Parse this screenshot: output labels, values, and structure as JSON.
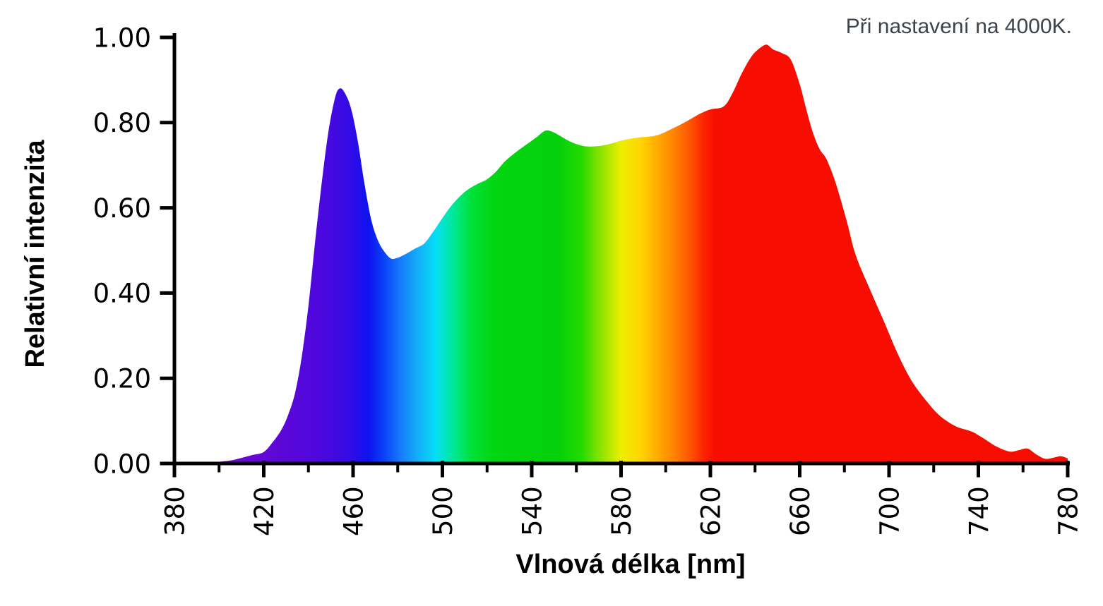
{
  "chart_data": {
    "type": "area",
    "title": "",
    "xlabel": "Vlnová délka [nm]",
    "ylabel": "Relativní intenzita",
    "annotation": "Při nastavení na 4000K.",
    "x_range": [
      380,
      780
    ],
    "y_range": [
      0,
      1
    ],
    "grid": false,
    "legend": "none",
    "x_major_ticks": [
      {
        "v": 380,
        "label": "380"
      },
      {
        "v": 420,
        "label": "420"
      },
      {
        "v": 460,
        "label": "460"
      },
      {
        "v": 500,
        "label": "500"
      },
      {
        "v": 540,
        "label": "540"
      },
      {
        "v": 580,
        "label": "580"
      },
      {
        "v": 620,
        "label": "620"
      },
      {
        "v": 660,
        "label": "660"
      },
      {
        "v": 700,
        "label": "700"
      },
      {
        "v": 740,
        "label": "740"
      },
      {
        "v": 780,
        "label": "780"
      }
    ],
    "x_minor_ticks": [
      400,
      440,
      480,
      520,
      560,
      600,
      640,
      680,
      720,
      760
    ],
    "y_ticks": [
      {
        "v": 0.0,
        "label": "0.00"
      },
      {
        "v": 0.2,
        "label": "0.20"
      },
      {
        "v": 0.4,
        "label": "0.40"
      },
      {
        "v": 0.6,
        "label": "0.60"
      },
      {
        "v": 0.8,
        "label": "0.80"
      },
      {
        "v": 1.0,
        "label": "1.00"
      }
    ],
    "axis_color": "#000000",
    "annotation_color": "#3d4349",
    "points": [
      [
        396,
        0
      ],
      [
        400,
        0.004
      ],
      [
        405,
        0.007
      ],
      [
        410,
        0.013
      ],
      [
        415,
        0.02
      ],
      [
        420,
        0.027
      ],
      [
        424,
        0.05
      ],
      [
        428,
        0.08
      ],
      [
        431,
        0.115
      ],
      [
        434,
        0.165
      ],
      [
        437,
        0.25
      ],
      [
        440,
        0.37
      ],
      [
        443,
        0.52
      ],
      [
        446,
        0.66
      ],
      [
        449,
        0.78
      ],
      [
        452,
        0.86
      ],
      [
        454,
        0.88
      ],
      [
        456,
        0.872
      ],
      [
        459,
        0.835
      ],
      [
        462,
        0.76
      ],
      [
        465,
        0.66
      ],
      [
        468,
        0.575
      ],
      [
        471,
        0.525
      ],
      [
        474,
        0.497
      ],
      [
        477,
        0.481
      ],
      [
        480,
        0.483
      ],
      [
        484,
        0.493
      ],
      [
        488,
        0.505
      ],
      [
        492,
        0.517
      ],
      [
        496,
        0.545
      ],
      [
        500,
        0.576
      ],
      [
        504,
        0.605
      ],
      [
        508,
        0.628
      ],
      [
        512,
        0.645
      ],
      [
        516,
        0.657
      ],
      [
        520,
        0.667
      ],
      [
        524,
        0.685
      ],
      [
        528,
        0.709
      ],
      [
        533,
        0.731
      ],
      [
        538,
        0.75
      ],
      [
        542,
        0.765
      ],
      [
        546,
        0.781
      ],
      [
        549,
        0.779
      ],
      [
        553,
        0.768
      ],
      [
        557,
        0.756
      ],
      [
        561,
        0.748
      ],
      [
        565,
        0.744
      ],
      [
        570,
        0.745
      ],
      [
        575,
        0.75
      ],
      [
        581,
        0.759
      ],
      [
        588,
        0.765
      ],
      [
        596,
        0.77
      ],
      [
        603,
        0.786
      ],
      [
        609,
        0.802
      ],
      [
        615,
        0.82
      ],
      [
        620,
        0.831
      ],
      [
        626,
        0.838
      ],
      [
        630,
        0.87
      ],
      [
        634,
        0.915
      ],
      [
        638,
        0.952
      ],
      [
        641,
        0.97
      ],
      [
        645,
        0.983
      ],
      [
        648,
        0.972
      ],
      [
        652,
        0.963
      ],
      [
        656,
        0.948
      ],
      [
        660,
        0.89
      ],
      [
        663,
        0.83
      ],
      [
        666,
        0.775
      ],
      [
        669,
        0.737
      ],
      [
        672,
        0.714
      ],
      [
        676,
        0.66
      ],
      [
        681,
        0.57
      ],
      [
        685,
        0.49
      ],
      [
        691,
        0.414
      ],
      [
        698,
        0.33
      ],
      [
        704,
        0.256
      ],
      [
        710,
        0.195
      ],
      [
        717,
        0.145
      ],
      [
        723,
        0.111
      ],
      [
        730,
        0.087
      ],
      [
        737,
        0.075
      ],
      [
        742,
        0.06
      ],
      [
        748,
        0.04
      ],
      [
        754,
        0.028
      ],
      [
        758,
        0.031
      ],
      [
        762,
        0.035
      ],
      [
        766,
        0.021
      ],
      [
        770,
        0.011
      ],
      [
        774,
        0.014
      ],
      [
        777,
        0.017
      ],
      [
        780,
        0.012
      ]
    ],
    "gradient_stops": [
      {
        "wl": 405,
        "color": "#6f07cf"
      },
      {
        "wl": 435,
        "color": "#5607d9"
      },
      {
        "wl": 450,
        "color": "#4609df"
      },
      {
        "wl": 460,
        "color": "#2e0ce7"
      },
      {
        "wl": 467,
        "color": "#0d13f0"
      },
      {
        "wl": 474,
        "color": "#0b43f7"
      },
      {
        "wl": 481,
        "color": "#1679fa"
      },
      {
        "wl": 489,
        "color": "#13aef8"
      },
      {
        "wl": 497,
        "color": "#06dff5"
      },
      {
        "wl": 505,
        "color": "#00e996"
      },
      {
        "wl": 513,
        "color": "#00e038"
      },
      {
        "wl": 522,
        "color": "#02d714"
      },
      {
        "wl": 530,
        "color": "#02d40e"
      },
      {
        "wl": 552,
        "color": "#04d00b"
      },
      {
        "wl": 562,
        "color": "#22da00"
      },
      {
        "wl": 571,
        "color": "#8ee300"
      },
      {
        "wl": 580,
        "color": "#eeee00"
      },
      {
        "wl": 589,
        "color": "#ffd400"
      },
      {
        "wl": 597,
        "color": "#ffa700"
      },
      {
        "wl": 605,
        "color": "#ff7b00"
      },
      {
        "wl": 612,
        "color": "#ff4d00"
      },
      {
        "wl": 617,
        "color": "#fc2400"
      },
      {
        "wl": 622,
        "color": "#f80e00"
      },
      {
        "wl": 780,
        "color": "#f60d00"
      }
    ]
  }
}
